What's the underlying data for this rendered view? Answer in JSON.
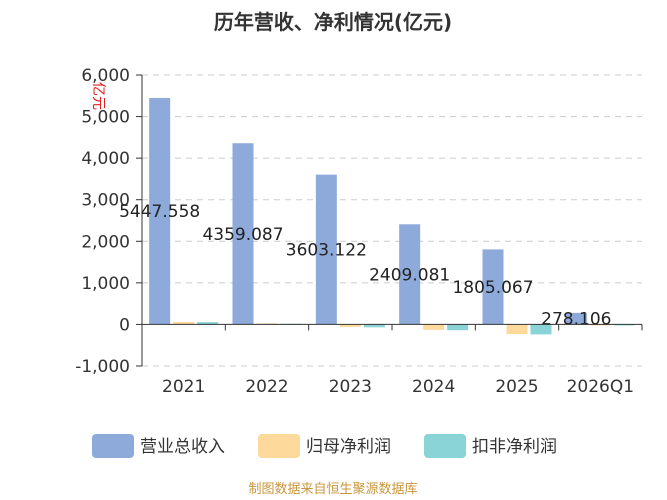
{
  "chart_data": {
    "type": "bar",
    "title": "历年营收、净利情况(亿元)",
    "ylabel": "亿元",
    "xlabel": "",
    "ylim": [
      -1000,
      6000
    ],
    "yticks": [
      -1000,
      0,
      1000,
      2000,
      3000,
      4000,
      5000,
      6000
    ],
    "ytick_labels": [
      "-1,000",
      "0",
      "1,000",
      "2,000",
      "3,000",
      "4,000",
      "5,000",
      "6,000"
    ],
    "categories": [
      "2021",
      "2022",
      "2023",
      "2024",
      "2025",
      "2026Q1"
    ],
    "series": [
      {
        "name": "营业总收入",
        "color": "#8eaadb",
        "values": [
          5447.558,
          4359.087,
          3603.122,
          2409.081,
          1805.067,
          278.106
        ],
        "labels": [
          "5447.558",
          "4359.087",
          "3603.122",
          "2409.081",
          "1805.067",
          "278.106"
        ]
      },
      {
        "name": "归母净利润",
        "color": "#fdd99b",
        "values": [
          60,
          25,
          -60,
          -130,
          -230,
          -10
        ]
      },
      {
        "name": "扣非净利润",
        "color": "#8ad3d6",
        "values": [
          55,
          15,
          -70,
          -140,
          -240,
          -12
        ]
      }
    ],
    "grid": true,
    "legend_position": "bottom",
    "source": "制图数据来自恒生聚源数据库"
  }
}
